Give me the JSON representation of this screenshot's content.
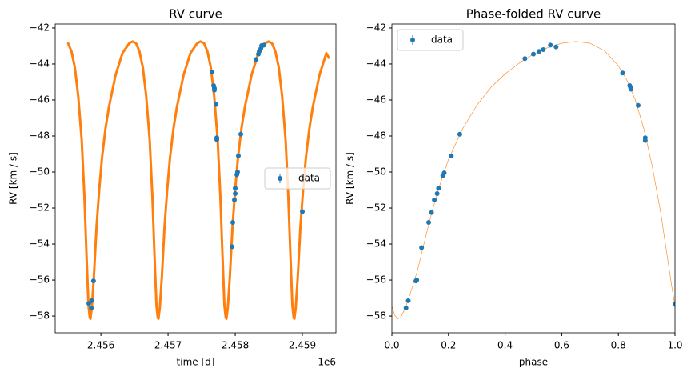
{
  "chart_data": [
    {
      "type": "scatter",
      "title": "RV curve",
      "x_label": "time [d]",
      "y_label": "RV [km / s]",
      "x_offset_label": "1e6",
      "xlim": [
        2455320,
        2459500
      ],
      "ylim": [
        -58.93,
        -41.78
      ],
      "xticks": [
        {
          "value": 2456000,
          "label": "2.456"
        },
        {
          "value": 2457000,
          "label": "2.457"
        },
        {
          "value": 2458000,
          "label": "2.458"
        },
        {
          "value": 2459000,
          "label": "2.459"
        }
      ],
      "yticks": [
        {
          "value": -58,
          "label": "−58"
        },
        {
          "value": -56,
          "label": "−56"
        },
        {
          "value": -54,
          "label": "−54"
        },
        {
          "value": -52,
          "label": "−52"
        },
        {
          "value": -50,
          "label": "−50"
        },
        {
          "value": -48,
          "label": "−48"
        },
        {
          "value": -46,
          "label": "−46"
        },
        {
          "value": -44,
          "label": "−44"
        },
        {
          "value": -42,
          "label": "−42"
        }
      ],
      "legend": "center right",
      "series": [
        {
          "type": "line",
          "color": "#ff7f0e",
          "width": 3,
          "x": [
            2455500,
            2455511,
            2455562,
            2455613,
            2455663,
            2455714,
            2455754,
            2455785,
            2455815,
            2455835,
            2455845,
            2455866,
            2455896,
            2455936,
            2455977,
            2456017,
            2456068,
            2456119,
            2456220,
            2456321,
            2456422,
            2456473,
            2456523,
            2456574,
            2456625,
            2456675,
            2456726,
            2456766,
            2456797,
            2456827,
            2456847,
            2456857,
            2456878,
            2456908,
            2456948,
            2456989,
            2457029,
            2457080,
            2457131,
            2457232,
            2457333,
            2457434,
            2457485,
            2457535,
            2457586,
            2457637,
            2457687,
            2457738,
            2457778,
            2457809,
            2457839,
            2457859,
            2457869,
            2457890,
            2457920,
            2457960,
            2458001,
            2458041,
            2458092,
            2458143,
            2458244,
            2458345,
            2458446,
            2458497,
            2458547,
            2458598,
            2458649,
            2458699,
            2458750,
            2458790,
            2458821,
            2458851,
            2458871,
            2458881,
            2458902,
            2458932,
            2458972,
            2459013,
            2459053,
            2459104,
            2459155,
            2459256,
            2459357,
            2459400
          ],
          "values": [
            -42.83,
            -42.85,
            -43.3,
            -44.2,
            -45.8,
            -48.2,
            -51.3,
            -54.5,
            -57.4,
            -58.1,
            -58.15,
            -57.5,
            -55.8,
            -53.0,
            -50.9,
            -49.2,
            -47.6,
            -46.4,
            -44.6,
            -43.4,
            -42.85,
            -42.75,
            -42.85,
            -43.3,
            -44.2,
            -45.8,
            -48.2,
            -51.3,
            -54.5,
            -57.4,
            -58.1,
            -58.15,
            -57.5,
            -55.8,
            -53.0,
            -50.9,
            -49.2,
            -47.6,
            -46.4,
            -44.6,
            -43.4,
            -42.85,
            -42.75,
            -42.85,
            -43.3,
            -44.2,
            -45.8,
            -48.2,
            -51.3,
            -54.5,
            -57.4,
            -58.1,
            -58.15,
            -57.5,
            -55.8,
            -53.0,
            -50.9,
            -49.2,
            -47.6,
            -46.4,
            -44.6,
            -43.4,
            -42.85,
            -42.75,
            -42.85,
            -43.3,
            -44.2,
            -45.8,
            -48.2,
            -51.3,
            -54.5,
            -57.4,
            -58.1,
            -58.15,
            -57.5,
            -55.8,
            -53.0,
            -50.9,
            -49.2,
            -47.6,
            -46.4,
            -44.6,
            -43.4,
            -43.7
          ]
        },
        {
          "type": "scatter",
          "name": "data",
          "color": "#1f77b4",
          "x": [
            2455820,
            2455862,
            2455858,
            2455890,
            2457654,
            2457678,
            2457690,
            2457690,
            2457714,
            2457726,
            2457726,
            2457952,
            2457964,
            2457988,
            2458000,
            2458000,
            2458024,
            2458035,
            2458047,
            2458083,
            2458309,
            2458345,
            2458357,
            2458381,
            2458393,
            2458428,
            2459000
          ],
          "values": [
            -57.3,
            -57.15,
            -57.55,
            -56.05,
            -44.45,
            -45.2,
            -45.35,
            -45.45,
            -46.25,
            -48.1,
            -48.2,
            -54.15,
            -52.8,
            -51.55,
            -51.2,
            -50.9,
            -50.15,
            -50.0,
            -49.1,
            -47.9,
            -43.75,
            -43.45,
            -43.3,
            -43.15,
            -42.98,
            -42.95,
            -52.2
          ]
        }
      ]
    },
    {
      "type": "scatter",
      "title": "Phase-folded RV curve",
      "x_label": "phase",
      "y_label": "RV [km / s]",
      "xlim": [
        0,
        1
      ],
      "ylim": [
        -58.93,
        -41.78
      ],
      "xticks": [
        {
          "value": 0,
          "label": "0.0"
        },
        0.2,
        0.4,
        0.6,
        0.8,
        {
          "value": 1,
          "label": "1.0"
        }
      ],
      "yticks": [
        {
          "value": -58,
          "label": "−58"
        },
        {
          "value": -56,
          "label": "−56"
        },
        {
          "value": -54,
          "label": "−54"
        },
        {
          "value": -52,
          "label": "−52"
        },
        {
          "value": -50,
          "label": "−50"
        },
        {
          "value": -48,
          "label": "−48"
        },
        {
          "value": -46,
          "label": "−46"
        },
        {
          "value": -44,
          "label": "−44"
        },
        {
          "value": -42,
          "label": "−42"
        }
      ],
      "legend": "upper left",
      "series": [
        {
          "type": "line",
          "color": "#ff7f0e",
          "width": 0.6,
          "x": [
            0,
            0.01,
            0.02,
            0.03,
            0.04,
            0.05,
            0.07,
            0.09,
            0.11,
            0.14,
            0.17,
            0.2,
            0.25,
            0.3,
            0.35,
            0.4,
            0.45,
            0.5,
            0.55,
            0.6,
            0.65,
            0.7,
            0.75,
            0.8,
            0.83,
            0.86,
            0.89,
            0.92,
            0.95,
            0.97,
            0.99,
            1
          ],
          "values": [
            -57.45,
            -57.95,
            -58.15,
            -58.1,
            -57.8,
            -57.45,
            -56.5,
            -55.5,
            -54.2,
            -52.3,
            -50.7,
            -49.3,
            -47.6,
            -46.3,
            -45.3,
            -44.55,
            -43.95,
            -43.45,
            -43.1,
            -42.85,
            -42.75,
            -42.85,
            -43.25,
            -44.1,
            -44.9,
            -46.0,
            -47.6,
            -49.7,
            -52.3,
            -54.4,
            -56.5,
            -57.45
          ]
        },
        {
          "type": "scatter",
          "name": "data",
          "color": "#1f77b4",
          "x": [
            0.05,
            0.058,
            0.085,
            0.088,
            0.105,
            0.13,
            0.14,
            0.15,
            0.16,
            0.165,
            0.18,
            0.185,
            0.21,
            0.24,
            0.47,
            0.5,
            0.52,
            0.535,
            0.56,
            0.58,
            0.815,
            0.84,
            0.843,
            0.845,
            0.87,
            0.895,
            0.895,
            1.0
          ],
          "values": [
            -57.55,
            -57.15,
            -56.05,
            -56.0,
            -54.2,
            -52.8,
            -52.25,
            -51.55,
            -51.2,
            -50.9,
            -50.2,
            -50.05,
            -49.1,
            -47.9,
            -43.7,
            -43.45,
            -43.3,
            -43.2,
            -42.95,
            -43.05,
            -44.5,
            -45.2,
            -45.3,
            -45.4,
            -46.3,
            -48.1,
            -48.25,
            -57.35
          ]
        }
      ]
    }
  ]
}
